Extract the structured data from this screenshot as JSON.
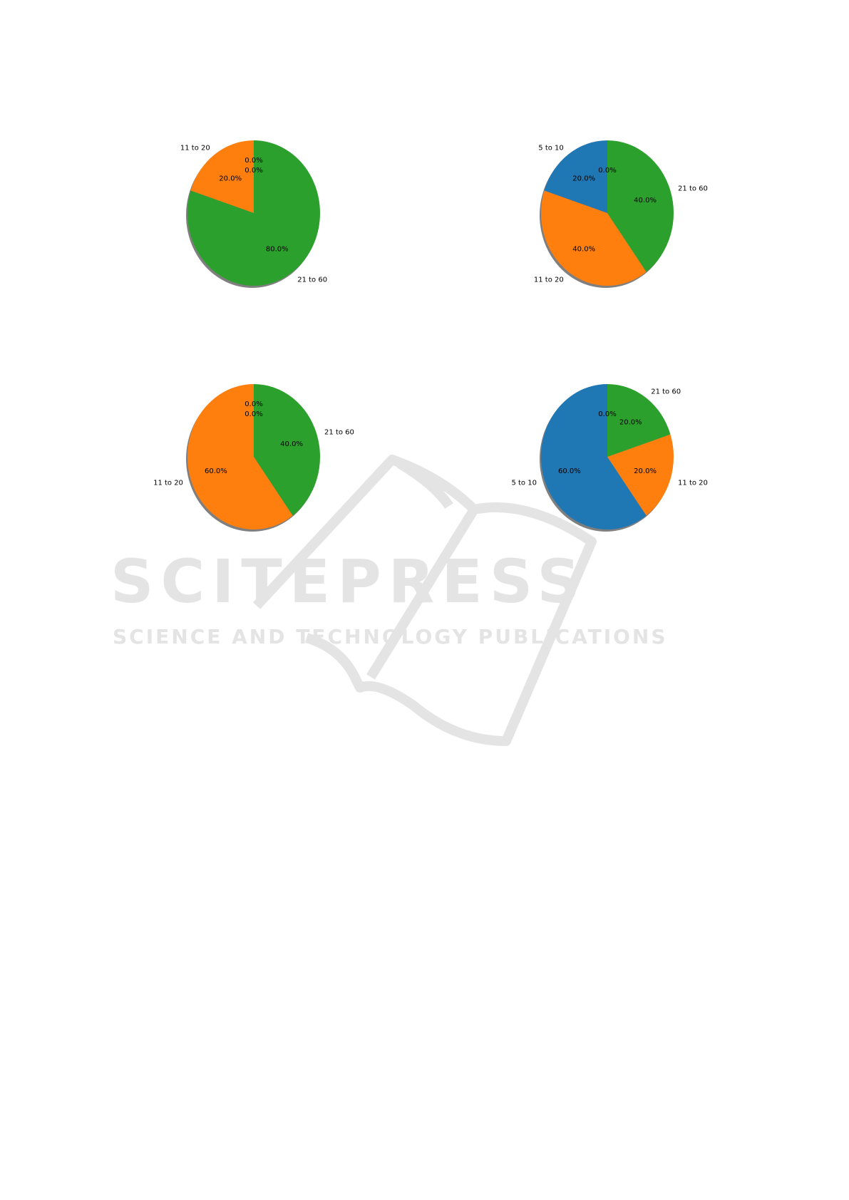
{
  "watermark": {
    "title": "SCITEPRESS",
    "subtitle": "SCIENCE AND TECHNOLOGY PUBLICATIONS"
  },
  "colors": {
    "5 to 10": "#1f77b4",
    "11 to 20": "#ff7f0e",
    "21 to 60": "#2ca02c",
    "shadow": "#7f7f7f"
  },
  "chart_data": [
    {
      "type": "pie",
      "start_angle": 90,
      "direction": "counterclockwise",
      "shadow": true,
      "slices": [
        {
          "label": "",
          "value": 0,
          "pct_label": "0.0%"
        },
        {
          "label": "",
          "value": 0,
          "pct_label": "0.0%"
        },
        {
          "label": "11 to 20",
          "value": 20,
          "pct_label": "20.0%"
        },
        {
          "label": "21 to 60",
          "value": 80,
          "pct_label": "80.0%"
        }
      ]
    },
    {
      "type": "pie",
      "start_angle": 90,
      "direction": "counterclockwise",
      "shadow": true,
      "slices": [
        {
          "label": "",
          "value": 0,
          "pct_label": "0.0%"
        },
        {
          "label": "5 to 10",
          "value": 20,
          "pct_label": "20.0%"
        },
        {
          "label": "11 to 20",
          "value": 40,
          "pct_label": "40.0%"
        },
        {
          "label": "21 to 60",
          "value": 40,
          "pct_label": "40.0%"
        }
      ]
    },
    {
      "type": "pie",
      "start_angle": 90,
      "direction": "counterclockwise",
      "shadow": true,
      "slices": [
        {
          "label": "",
          "value": 0,
          "pct_label": "0.0%"
        },
        {
          "label": "",
          "value": 0,
          "pct_label": "0.0%"
        },
        {
          "label": "11 to 20",
          "value": 60,
          "pct_label": "60.0%"
        },
        {
          "label": "21 to 60",
          "value": 40,
          "pct_label": "40.0%"
        }
      ]
    },
    {
      "type": "pie",
      "start_angle": 90,
      "direction": "counterclockwise",
      "shadow": true,
      "slices": [
        {
          "label": "",
          "value": 0,
          "pct_label": "0.0%"
        },
        {
          "label": "5 to 10",
          "value": 60,
          "pct_label": "60.0%"
        },
        {
          "label": "11 to 20",
          "value": 20,
          "pct_label": "20.0%"
        },
        {
          "label": "21 to 60",
          "value": 20,
          "pct_label": "20.0%"
        }
      ]
    }
  ]
}
